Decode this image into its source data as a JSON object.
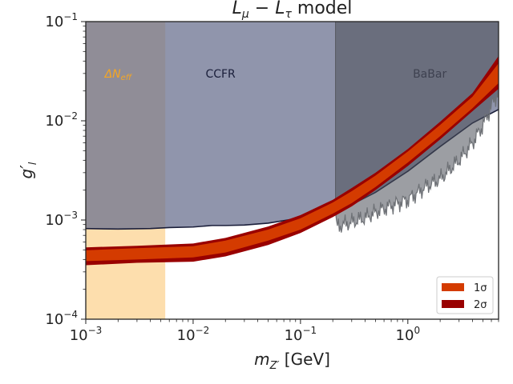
{
  "chart_data": {
    "type": "area",
    "title": "L_μ − L_τ model",
    "xlabel": "m_Z′ [GeV]",
    "ylabel": "g′_l",
    "xscale": "log",
    "yscale": "log",
    "xlim": [
      0.001,
      7.0
    ],
    "ylim": [
      0.0001,
      0.1
    ],
    "x_ticks": [
      {
        "value": 0.001,
        "base": "10",
        "exp": "−3"
      },
      {
        "value": 0.01,
        "base": "10",
        "exp": "−2"
      },
      {
        "value": 0.1,
        "base": "10",
        "exp": "−1"
      },
      {
        "value": 1,
        "base": "10",
        "exp": "0"
      }
    ],
    "y_ticks": [
      {
        "value": 0.0001,
        "base": "10",
        "exp": "−4"
      },
      {
        "value": 0.001,
        "base": "10",
        "exp": "−3"
      },
      {
        "value": 0.01,
        "base": "10",
        "exp": "−2"
      },
      {
        "value": 0.1,
        "base": "10",
        "exp": "−1"
      }
    ],
    "exclusion_regions": [
      {
        "name": "ΔN_eff",
        "label_main": "ΔN",
        "label_sub": "eff",
        "x_range": [
          0.001,
          0.0055
        ],
        "color": "#fcd08a",
        "opacity": 0.7,
        "label_color": "#f5a623",
        "label_at": {
          "x": 0.002,
          "y": 0.03
        }
      },
      {
        "name": "CCFR",
        "x_range": [
          0.0055,
          7.0
        ],
        "color": "#6b7290",
        "opacity": 0.75,
        "label_color": "#1a1e3a",
        "label_at": {
          "x": 0.018,
          "y": 0.03
        },
        "lower_boundary": [
          [
            0.001,
            0.00082
          ],
          [
            0.002,
            0.00081
          ],
          [
            0.004,
            0.00082
          ],
          [
            0.006,
            0.00084
          ],
          [
            0.01,
            0.00085
          ],
          [
            0.015,
            0.00088
          ],
          [
            0.02,
            0.00088
          ],
          [
            0.03,
            0.00089
          ],
          [
            0.05,
            0.00093
          ],
          [
            0.1,
            0.00105
          ],
          [
            0.15,
            0.00115
          ],
          [
            0.2,
            0.00123
          ],
          [
            0.3,
            0.00143
          ],
          [
            0.5,
            0.0019
          ],
          [
            1.0,
            0.0031
          ],
          [
            2.0,
            0.0055
          ],
          [
            4.0,
            0.0095
          ],
          [
            7.0,
            0.013
          ]
        ]
      },
      {
        "name": "BaBar",
        "x_range": [
          0.212,
          7.0
        ],
        "color": "#4b4f57",
        "opacity": 0.55,
        "label_color": "#3e4150",
        "label_at": {
          "x": 1.6,
          "y": 0.03
        },
        "lower_boundary": [
          [
            0.212,
            0.0012
          ],
          [
            0.22,
            0.00085
          ],
          [
            0.25,
            0.0009
          ],
          [
            0.3,
            0.00095
          ],
          [
            0.4,
            0.00105
          ],
          [
            0.5,
            0.0012
          ],
          [
            0.7,
            0.0014
          ],
          [
            1.0,
            0.0016
          ],
          [
            1.5,
            0.0022
          ],
          [
            2.0,
            0.0026
          ],
          [
            3.0,
            0.004
          ],
          [
            4.0,
            0.006
          ],
          [
            5.0,
            0.009
          ],
          [
            6.0,
            0.014
          ],
          [
            7.0,
            0.02
          ]
        ]
      }
    ],
    "bands": [
      {
        "name": "2σ",
        "color": "#990000",
        "points": [
          [
            0.001,
            0.00035,
            0.00053
          ],
          [
            0.003,
            0.00037,
            0.00055
          ],
          [
            0.01,
            0.00038,
            0.00058
          ],
          [
            0.02,
            0.00043,
            0.00066
          ],
          [
            0.05,
            0.00056,
            0.00086
          ],
          [
            0.1,
            0.00074,
            0.00112
          ],
          [
            0.2,
            0.00107,
            0.0016
          ],
          [
            0.3,
            0.00137,
            0.0021
          ],
          [
            0.5,
            0.002,
            0.003
          ],
          [
            1.0,
            0.0035,
            0.0052
          ],
          [
            2.0,
            0.0065,
            0.0098
          ],
          [
            4.0,
            0.0125,
            0.019
          ],
          [
            7.0,
            0.021,
            0.045
          ]
        ]
      },
      {
        "name": "1σ",
        "color": "#d43b00",
        "points": [
          [
            0.001,
            0.000385,
            0.000495
          ],
          [
            0.003,
            0.0004,
            0.00052
          ],
          [
            0.01,
            0.00042,
            0.000545
          ],
          [
            0.02,
            0.00047,
            0.00062
          ],
          [
            0.05,
            0.00062,
            0.0008
          ],
          [
            0.1,
            0.0008,
            0.00104
          ],
          [
            0.2,
            0.00116,
            0.0015
          ],
          [
            0.3,
            0.00148,
            0.00195
          ],
          [
            0.5,
            0.00215,
            0.0028
          ],
          [
            1.0,
            0.0038,
            0.0049
          ],
          [
            2.0,
            0.007,
            0.0091
          ],
          [
            4.0,
            0.0134,
            0.0175
          ],
          [
            7.0,
            0.024,
            0.038
          ]
        ]
      }
    ],
    "legend": {
      "position": "lower-right",
      "entries": [
        {
          "label": "1σ",
          "color": "#d43b00"
        },
        {
          "label": "2σ",
          "color": "#990000"
        }
      ]
    },
    "grid": false
  }
}
